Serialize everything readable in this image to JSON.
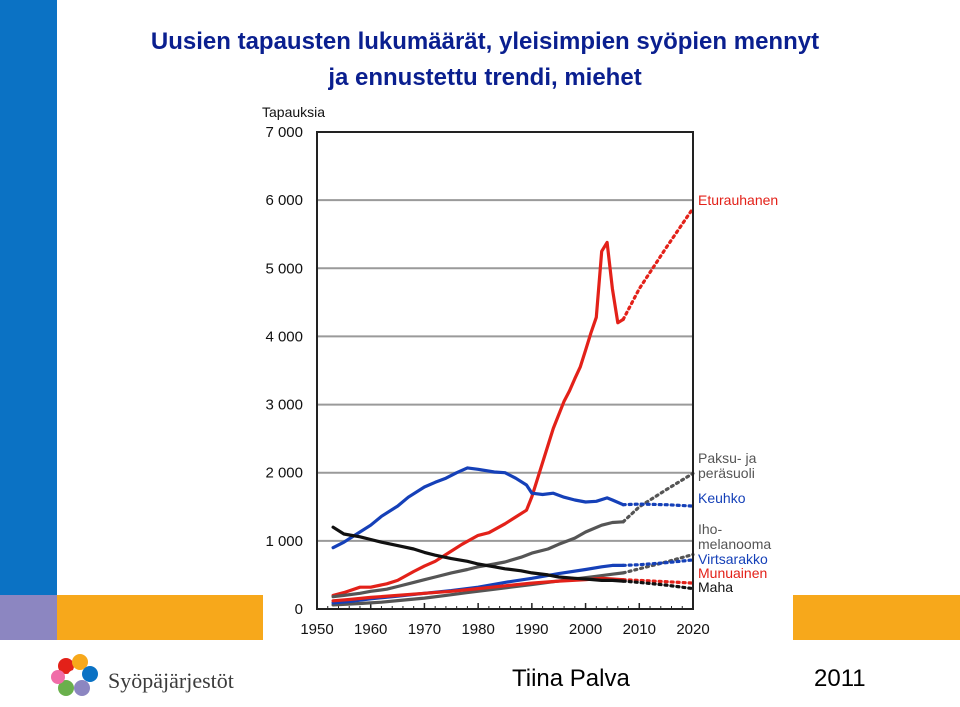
{
  "slide": {
    "title_line1": "Uusien tapausten lukumäärät, yleisimpien syöpien mennyt",
    "title_line2": "ja ennustettu trendi, miehet",
    "author": "Tiina Palva",
    "year": "2011",
    "logo_text": "Syöpäjärjestöt",
    "colors": {
      "blue_strip": "#0b72c4",
      "orange": "#f7a81b",
      "purple": "#8c86c1",
      "title": "#0a1f8f"
    }
  },
  "chart_data": {
    "type": "line",
    "ylabel": "Tapauksia",
    "ylim": [
      0,
      7000
    ],
    "xlim": [
      1950,
      2020
    ],
    "x_ticks": [
      1950,
      1960,
      1970,
      1980,
      1990,
      2000,
      2010,
      2020
    ],
    "y_ticks": [
      {
        "value": 0,
        "label": "0"
      },
      {
        "value": 1000,
        "label": "1 000"
      },
      {
        "value": 2000,
        "label": "2 000"
      },
      {
        "value": 3000,
        "label": "3 000"
      },
      {
        "value": 4000,
        "label": "4 000"
      },
      {
        "value": 5000,
        "label": "5 000"
      },
      {
        "value": 6000,
        "label": "6 000"
      },
      {
        "value": 7000,
        "label": "7 000"
      }
    ],
    "grid": true,
    "series": [
      {
        "name": "Eturauhanen",
        "label_lines": [
          "Eturauhanen"
        ],
        "color": "#e32119",
        "x": [
          1953,
          1955,
          1958,
          1960,
          1963,
          1965,
          1968,
          1970,
          1972,
          1975,
          1977,
          1980,
          1982,
          1985,
          1987,
          1989,
          1990,
          1992,
          1994,
          1996,
          1997,
          1998,
          1999,
          2000,
          2001,
          2002,
          2003,
          2004,
          2005,
          2006,
          2007
        ],
        "y": [
          200,
          240,
          320,
          320,
          370,
          420,
          550,
          630,
          700,
          850,
          950,
          1080,
          1120,
          1250,
          1350,
          1450,
          1650,
          2150,
          2650,
          3050,
          3200,
          3380,
          3550,
          3800,
          4050,
          4280,
          5250,
          5380,
          4700,
          4200,
          4250
        ],
        "forecast_x": [
          2007,
          2010,
          2015,
          2020
        ],
        "forecast_y": [
          4250,
          4700,
          5300,
          5880
        ]
      },
      {
        "name": "Paksu- ja peräsuoli",
        "label_lines": [
          "Paksu- ja",
          "peräsuoli"
        ],
        "color": "#555555",
        "x": [
          1953,
          1955,
          1958,
          1960,
          1963,
          1965,
          1968,
          1970,
          1972,
          1975,
          1978,
          1980,
          1983,
          1985,
          1988,
          1990,
          1993,
          1995,
          1998,
          2000,
          2003,
          2005,
          2007
        ],
        "y": [
          180,
          200,
          230,
          260,
          290,
          330,
          390,
          430,
          470,
          530,
          580,
          620,
          660,
          690,
          760,
          820,
          880,
          950,
          1040,
          1130,
          1230,
          1270,
          1280
        ],
        "forecast_x": [
          2007,
          2010,
          2015,
          2020
        ],
        "forecast_y": [
          1280,
          1500,
          1750,
          1990
        ]
      },
      {
        "name": "Keuhko",
        "label_lines": [
          "Keuhko"
        ],
        "color": "#1540b8",
        "x": [
          1953,
          1955,
          1957,
          1960,
          1962,
          1965,
          1967,
          1970,
          1972,
          1974,
          1976,
          1978,
          1980,
          1983,
          1985,
          1987,
          1989,
          1990,
          1992,
          1994,
          1996,
          1998,
          2000,
          2002,
          2004,
          2005,
          2007
        ],
        "y": [
          900,
          980,
          1080,
          1230,
          1360,
          1510,
          1640,
          1790,
          1860,
          1920,
          2000,
          2070,
          2050,
          2010,
          2000,
          1920,
          1820,
          1700,
          1680,
          1700,
          1640,
          1600,
          1570,
          1580,
          1630,
          1600,
          1530
        ],
        "forecast_x": [
          2007,
          2010,
          2015,
          2020
        ],
        "forecast_y": [
          1530,
          1540,
          1530,
          1510
        ]
      },
      {
        "name": "Ihomelanooma",
        "label_lines": [
          "Iho-",
          "melanooma"
        ],
        "color": "#555555",
        "x": [
          1953,
          1958,
          1962,
          1966,
          1970,
          1974,
          1978,
          1982,
          1986,
          1990,
          1994,
          1998,
          2002,
          2005,
          2007
        ],
        "y": [
          60,
          80,
          100,
          130,
          160,
          200,
          240,
          280,
          320,
          360,
          400,
          440,
          480,
          510,
          530
        ],
        "forecast_x": [
          2007,
          2010,
          2015,
          2020
        ],
        "forecast_y": [
          530,
          590,
          690,
          800
        ]
      },
      {
        "name": "Virtsarakko",
        "label_lines": [
          "Virtsarakko"
        ],
        "color": "#1540b8",
        "x": [
          1953,
          1956,
          1960,
          1965,
          1970,
          1975,
          1980,
          1985,
          1990,
          1995,
          2000,
          2003,
          2005,
          2007
        ],
        "y": [
          90,
          110,
          150,
          190,
          230,
          270,
          320,
          390,
          450,
          520,
          580,
          620,
          640,
          640
        ],
        "forecast_x": [
          2007,
          2010,
          2015,
          2020
        ],
        "forecast_y": [
          640,
          650,
          680,
          720
        ]
      },
      {
        "name": "Munuainen",
        "label_lines": [
          "Munuainen"
        ],
        "color": "#e32119",
        "x": [
          1953,
          1956,
          1960,
          1965,
          1970,
          1975,
          1980,
          1985,
          1990,
          1995,
          2000,
          2003,
          2005,
          2007
        ],
        "y": [
          120,
          140,
          170,
          200,
          230,
          260,
          300,
          340,
          380,
          410,
          430,
          450,
          440,
          430
        ],
        "forecast_x": [
          2007,
          2010,
          2015,
          2020
        ],
        "forecast_y": [
          430,
          420,
          400,
          380
        ]
      },
      {
        "name": "Maha",
        "label_lines": [
          "Maha"
        ],
        "color": "#111111",
        "x": [
          1953,
          1955,
          1958,
          1960,
          1962,
          1965,
          1968,
          1970,
          1972,
          1975,
          1978,
          1980,
          1983,
          1985,
          1988,
          1990,
          1993,
          1995,
          1998,
          2000,
          2003,
          2005,
          2007
        ],
        "y": [
          1200,
          1100,
          1060,
          1020,
          980,
          930,
          880,
          830,
          790,
          740,
          700,
          660,
          620,
          590,
          560,
          530,
          500,
          470,
          450,
          440,
          420,
          420,
          410
        ],
        "forecast_x": [
          2007,
          2010,
          2015,
          2020
        ],
        "forecast_y": [
          410,
          390,
          350,
          300
        ]
      }
    ]
  }
}
